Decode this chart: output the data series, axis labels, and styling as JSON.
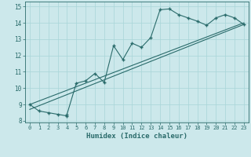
{
  "xlabel": "Humidex (Indice chaleur)",
  "ylabel": "",
  "bg_color": "#cce8eb",
  "line_color": "#2a6b6b",
  "grid_color": "#a8d5d8",
  "x_data": [
    0,
    1,
    2,
    3,
    4,
    4,
    5,
    6,
    7,
    8,
    9,
    10,
    11,
    12,
    13,
    14,
    15,
    16,
    17,
    18,
    19,
    20,
    21,
    22,
    23
  ],
  "y_data": [
    9.0,
    8.6,
    8.5,
    8.4,
    8.3,
    8.4,
    10.3,
    10.45,
    10.9,
    10.35,
    12.6,
    11.75,
    12.75,
    12.5,
    13.1,
    14.8,
    14.85,
    14.5,
    14.3,
    14.1,
    13.85,
    14.3,
    14.5,
    14.3,
    13.9
  ],
  "line1_x": [
    0,
    23
  ],
  "line1_y": [
    8.7,
    13.9
  ],
  "line2_x": [
    0,
    23
  ],
  "line2_y": [
    9.0,
    14.0
  ],
  "xlim": [
    -0.5,
    23.5
  ],
  "ylim": [
    7.9,
    15.3
  ],
  "xticks": [
    0,
    1,
    2,
    3,
    4,
    5,
    6,
    7,
    8,
    9,
    10,
    11,
    12,
    13,
    14,
    15,
    16,
    17,
    18,
    19,
    20,
    21,
    22,
    23
  ],
  "yticks": [
    8,
    9,
    10,
    11,
    12,
    13,
    14,
    15
  ]
}
